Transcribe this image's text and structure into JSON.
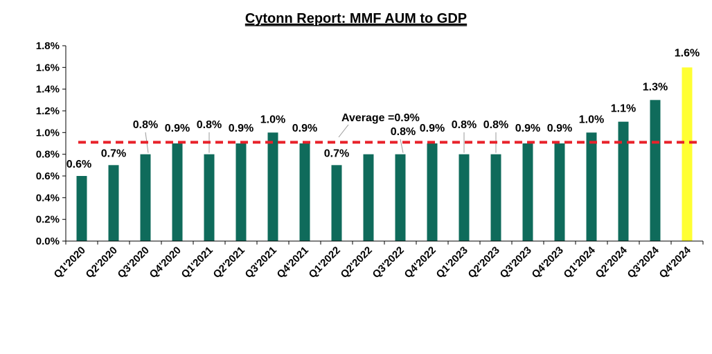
{
  "chart_data": {
    "type": "bar",
    "title": "Cytonn Report: MMF AUM to GDP",
    "xlabel": "",
    "ylabel": "",
    "ylim": [
      0,
      1.8
    ],
    "ytick_step": 0.2,
    "ytick_labels": [
      "0.0%",
      "0.2%",
      "0.4%",
      "0.6%",
      "0.8%",
      "1.0%",
      "1.2%",
      "1.4%",
      "1.6%",
      "1.8%"
    ],
    "grid": false,
    "legend": "none",
    "categories": [
      "Q1'2020",
      "Q2'2020",
      "Q3'2020",
      "Q4'2020",
      "Q1'2021",
      "Q2'2021",
      "Q3'2021",
      "Q4'2021",
      "Q1'2022",
      "Q2'2022",
      "Q3'2022",
      "Q4'2022",
      "Q1'2023",
      "Q2'2023",
      "Q3'2023",
      "Q4'2023",
      "Q1'2024",
      "Q2'2024",
      "Q3'2024",
      "Q4'2024"
    ],
    "values": [
      0.6,
      0.7,
      0.8,
      0.9,
      0.8,
      0.9,
      1.0,
      0.9,
      0.7,
      0.8,
      0.8,
      0.9,
      0.8,
      0.8,
      0.9,
      0.9,
      1.0,
      1.1,
      1.3,
      1.6
    ],
    "data_labels": [
      "0.6%",
      "0.7%",
      "0.8%",
      "0.9%",
      "0.8%",
      "0.9%",
      "1.0%",
      "0.9%",
      "0.7%",
      "",
      "0.8%",
      "0.9%",
      "0.8%",
      "0.8%",
      "0.9%",
      "0.9%",
      "1.0%",
      "1.1%",
      "1.3%",
      "1.6%"
    ],
    "average": 0.91,
    "average_label": "Average =0.9%",
    "colors": {
      "bar": "#0f6b5b",
      "highlight_bar": "#ffff33",
      "average_line": "#e8212a",
      "axis": "#000000"
    },
    "highlight_index": 19
  }
}
